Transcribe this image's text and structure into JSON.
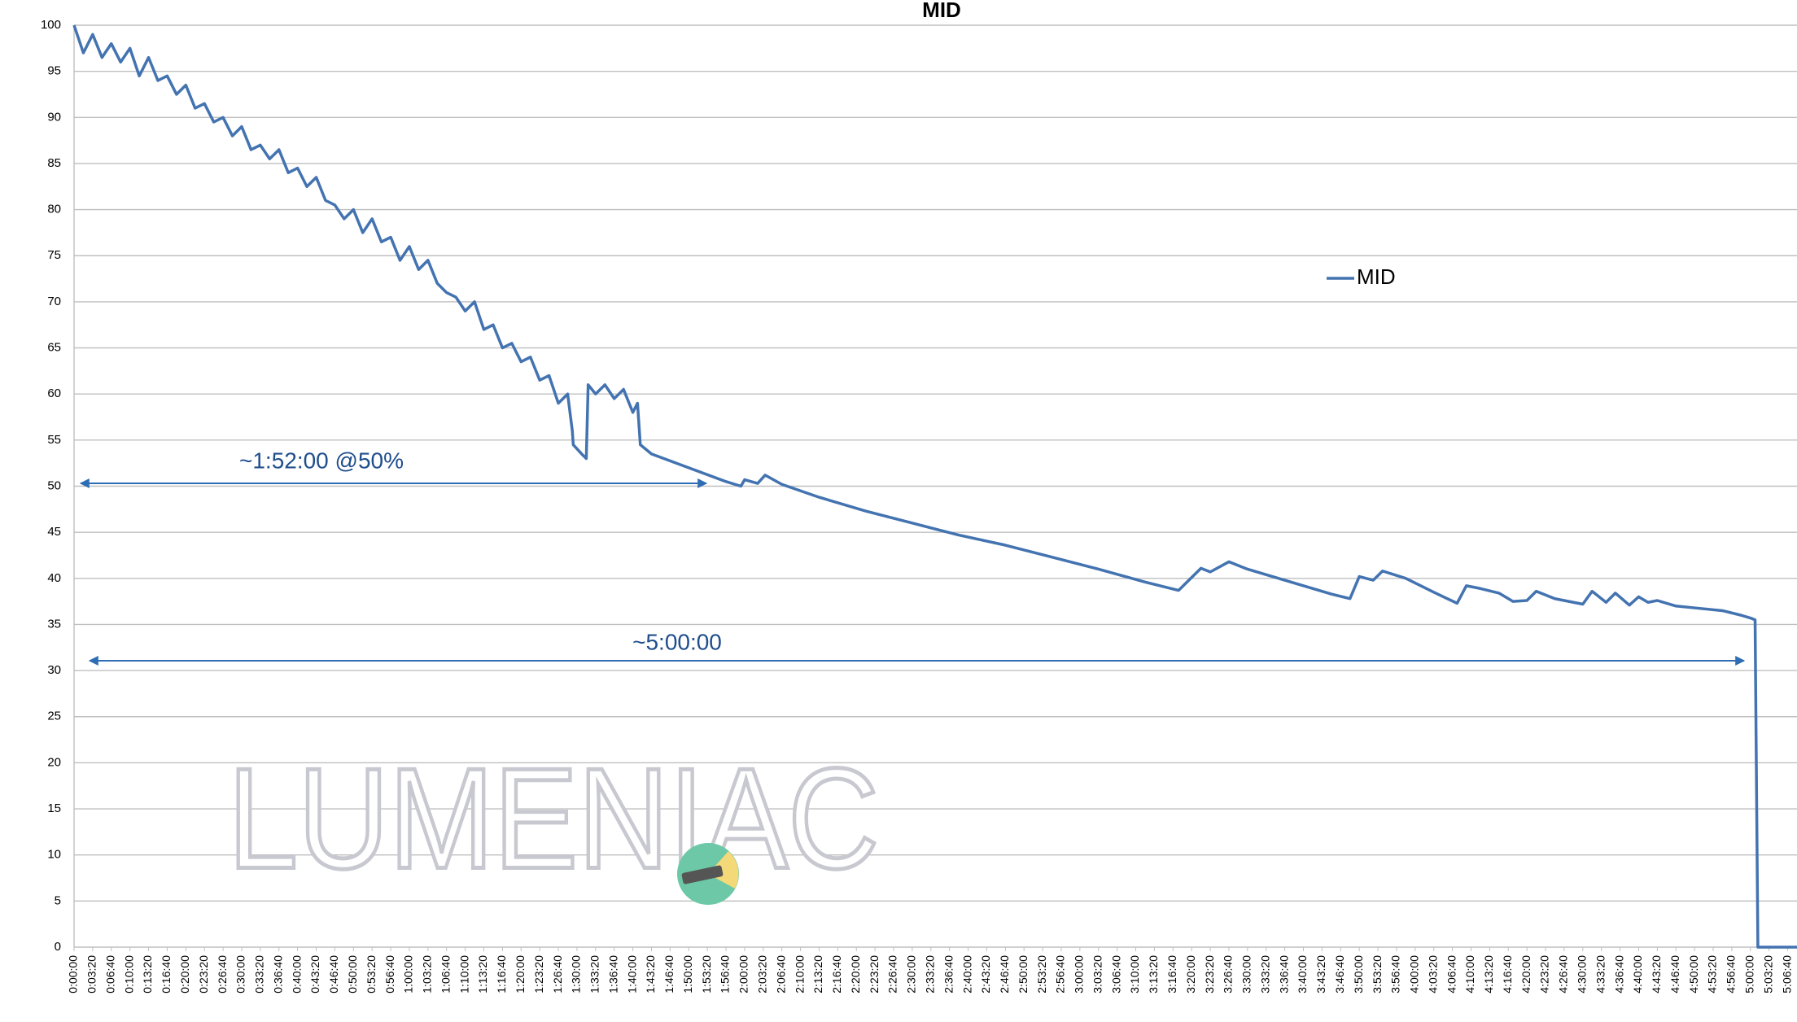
{
  "chart_data": {
    "type": "line",
    "title": "MID",
    "x": [
      0,
      100,
      200,
      300,
      400,
      500,
      600,
      700,
      800,
      900,
      1000,
      1100,
      1200,
      1300,
      1400,
      1500,
      1600,
      1700,
      1800,
      1900,
      2000,
      2100,
      2200,
      2300,
      2400,
      2500,
      2600,
      2700,
      2800,
      2900,
      3000,
      3100,
      3200,
      3300,
      3400,
      3500,
      3600,
      3700,
      3800,
      3900,
      4000,
      4100,
      4200,
      4300,
      4400,
      4500,
      4600,
      4700,
      4800,
      4900,
      5000,
      5100,
      5200,
      5300,
      5350,
      5360,
      5450,
      5500,
      5520,
      5600,
      5700,
      5800,
      5900,
      6000,
      6050,
      6080,
      6200,
      6600,
      7000,
      7160,
      7200,
      7340,
      7420,
      7600,
      8000,
      8500,
      9000,
      9500,
      10000,
      10500,
      11000,
      11500,
      11860,
      12100,
      12200,
      12400,
      12600,
      13000,
      13500,
      13700,
      13800,
      13950,
      14050,
      14300,
      14600,
      14850,
      14950,
      15100,
      15300,
      15450,
      15600,
      15700,
      15900,
      16200,
      16300,
      16450,
      16550,
      16700,
      16800,
      16900,
      17000,
      17200,
      17400,
      17700,
      17900,
      18000,
      18050,
      18080,
      18500
    ],
    "series": [
      {
        "name": "MID",
        "color": "#4373b0",
        "values": [
          100,
          97,
          99,
          96.5,
          98,
          96,
          97.5,
          94.5,
          96.5,
          94,
          94.5,
          92.5,
          93.5,
          91,
          91.5,
          89.5,
          90,
          88,
          89,
          86.5,
          87,
          85.5,
          86.5,
          84,
          84.5,
          82.5,
          83.5,
          81,
          80.5,
          79,
          80,
          77.5,
          79,
          76.5,
          77,
          74.5,
          76,
          73.5,
          74.5,
          72,
          71,
          70.5,
          69,
          70,
          67,
          67.5,
          65,
          65.5,
          63.5,
          64,
          61.5,
          62,
          59,
          60,
          56,
          54.5,
          53.5,
          53,
          61,
          60,
          61,
          59.5,
          60.5,
          58,
          59,
          54.5,
          53.5,
          52,
          50.5,
          50,
          50.7,
          50.3,
          51.2,
          50.2,
          48.8,
          47.3,
          46,
          44.7,
          43.6,
          42.3,
          41,
          39.6,
          38.7,
          41.1,
          40.7,
          41.8,
          41,
          39.8,
          38.3,
          37.8,
          40.2,
          39.8,
          40.8,
          40,
          38.5,
          37.3,
          39.2,
          38.9,
          38.4,
          37.5,
          37.6,
          38.6,
          37.8,
          37.2,
          38.6,
          37.4,
          38.4,
          37.1,
          38,
          37.4,
          37.6,
          37,
          36.8,
          36.5,
          36,
          35.7,
          35.5,
          0,
          0
        ]
      }
    ],
    "xlim": [
      0,
      18500
    ],
    "xticks": [
      {
        "value": 0,
        "label": "0:00:00"
      },
      {
        "value": 200,
        "label": "0:03:20"
      },
      {
        "value": 400,
        "label": "0:06:40"
      },
      {
        "value": 600,
        "label": "0:10:00"
      },
      {
        "value": 800,
        "label": "0:13:20"
      },
      {
        "value": 1000,
        "label": "0:16:40"
      },
      {
        "value": 1200,
        "label": "0:20:00"
      },
      {
        "value": 1400,
        "label": "0:23:20"
      },
      {
        "value": 1600,
        "label": "0:26:40"
      },
      {
        "value": 1800,
        "label": "0:30:00"
      },
      {
        "value": 2000,
        "label": "0:33:20"
      },
      {
        "value": 2200,
        "label": "0:36:40"
      },
      {
        "value": 2400,
        "label": "0:40:00"
      },
      {
        "value": 2600,
        "label": "0:43:20"
      },
      {
        "value": 2800,
        "label": "0:46:40"
      },
      {
        "value": 3000,
        "label": "0:50:00"
      },
      {
        "value": 3200,
        "label": "0:53:20"
      },
      {
        "value": 3400,
        "label": "0:56:40"
      },
      {
        "value": 3600,
        "label": "1:00:00"
      },
      {
        "value": 3800,
        "label": "1:03:20"
      },
      {
        "value": 4000,
        "label": "1:06:40"
      },
      {
        "value": 4200,
        "label": "1:10:00"
      },
      {
        "value": 4400,
        "label": "1:13:20"
      },
      {
        "value": 4600,
        "label": "1:16:40"
      },
      {
        "value": 4800,
        "label": "1:20:00"
      },
      {
        "value": 5000,
        "label": "1:23:20"
      },
      {
        "value": 5200,
        "label": "1:26:40"
      },
      {
        "value": 5400,
        "label": "1:30:00"
      },
      {
        "value": 5600,
        "label": "1:33:20"
      },
      {
        "value": 5800,
        "label": "1:36:40"
      },
      {
        "value": 6000,
        "label": "1:40:00"
      },
      {
        "value": 6200,
        "label": "1:43:20"
      },
      {
        "value": 6400,
        "label": "1:46:40"
      },
      {
        "value": 6600,
        "label": "1:50:00"
      },
      {
        "value": 6800,
        "label": "1:53:20"
      },
      {
        "value": 7000,
        "label": "1:56:40"
      },
      {
        "value": 7200,
        "label": "2:00:00"
      },
      {
        "value": 7400,
        "label": "2:03:20"
      },
      {
        "value": 7600,
        "label": "2:06:40"
      },
      {
        "value": 7800,
        "label": "2:10:00"
      },
      {
        "value": 8000,
        "label": "2:13:20"
      },
      {
        "value": 8200,
        "label": "2:16:40"
      },
      {
        "value": 8400,
        "label": "2:20:00"
      },
      {
        "value": 8600,
        "label": "2:23:20"
      },
      {
        "value": 8800,
        "label": "2:26:40"
      },
      {
        "value": 9000,
        "label": "2:30:00"
      },
      {
        "value": 9200,
        "label": "2:33:20"
      },
      {
        "value": 9400,
        "label": "2:36:40"
      },
      {
        "value": 9600,
        "label": "2:40:00"
      },
      {
        "value": 9800,
        "label": "2:43:20"
      },
      {
        "value": 10000,
        "label": "2:46:40"
      },
      {
        "value": 10200,
        "label": "2:50:00"
      },
      {
        "value": 10400,
        "label": "2:53:20"
      },
      {
        "value": 10600,
        "label": "2:56:40"
      },
      {
        "value": 10800,
        "label": "3:00:00"
      },
      {
        "value": 11000,
        "label": "3:03:20"
      },
      {
        "value": 11200,
        "label": "3:06:40"
      },
      {
        "value": 11400,
        "label": "3:10:00"
      },
      {
        "value": 11600,
        "label": "3:13:20"
      },
      {
        "value": 11800,
        "label": "3:16:40"
      },
      {
        "value": 12000,
        "label": "3:20:00"
      },
      {
        "value": 12200,
        "label": "3:23:20"
      },
      {
        "value": 12400,
        "label": "3:26:40"
      },
      {
        "value": 12600,
        "label": "3:30:00"
      },
      {
        "value": 12800,
        "label": "3:33:20"
      },
      {
        "value": 13000,
        "label": "3:36:40"
      },
      {
        "value": 13200,
        "label": "3:40:00"
      },
      {
        "value": 13400,
        "label": "3:43:20"
      },
      {
        "value": 13600,
        "label": "3:46:40"
      },
      {
        "value": 13800,
        "label": "3:50:00"
      },
      {
        "value": 14000,
        "label": "3:53:20"
      },
      {
        "value": 14200,
        "label": "3:56:40"
      },
      {
        "value": 14400,
        "label": "4:00:00"
      },
      {
        "value": 14600,
        "label": "4:03:20"
      },
      {
        "value": 14800,
        "label": "4:06:40"
      },
      {
        "value": 15000,
        "label": "4:10:00"
      },
      {
        "value": 15200,
        "label": "4:13:20"
      },
      {
        "value": 15400,
        "label": "4:16:40"
      },
      {
        "value": 15600,
        "label": "4:20:00"
      },
      {
        "value": 15800,
        "label": "4:23:20"
      },
      {
        "value": 16000,
        "label": "4:26:40"
      },
      {
        "value": 16200,
        "label": "4:30:00"
      },
      {
        "value": 16400,
        "label": "4:33:20"
      },
      {
        "value": 16600,
        "label": "4:36:40"
      },
      {
        "value": 16800,
        "label": "4:40:00"
      },
      {
        "value": 17000,
        "label": "4:43:20"
      },
      {
        "value": 17200,
        "label": "4:46:40"
      },
      {
        "value": 17400,
        "label": "4:50:00"
      },
      {
        "value": 17600,
        "label": "4:53:20"
      },
      {
        "value": 17800,
        "label": "4:56:40"
      },
      {
        "value": 18000,
        "label": "5:00:00"
      },
      {
        "value": 18200,
        "label": "5:03:20"
      },
      {
        "value": 18400,
        "label": "5:06:40"
      }
    ],
    "ylim": [
      0,
      100
    ],
    "yticks": [
      0,
      5,
      10,
      15,
      20,
      25,
      30,
      35,
      40,
      45,
      50,
      55,
      60,
      65,
      70,
      75,
      80,
      85,
      90,
      95,
      100
    ],
    "grid": true,
    "legend": "right",
    "annotations": [
      "~1:52:00 @50%",
      "~5:00:00"
    ],
    "watermark": "LUMENIAC"
  }
}
